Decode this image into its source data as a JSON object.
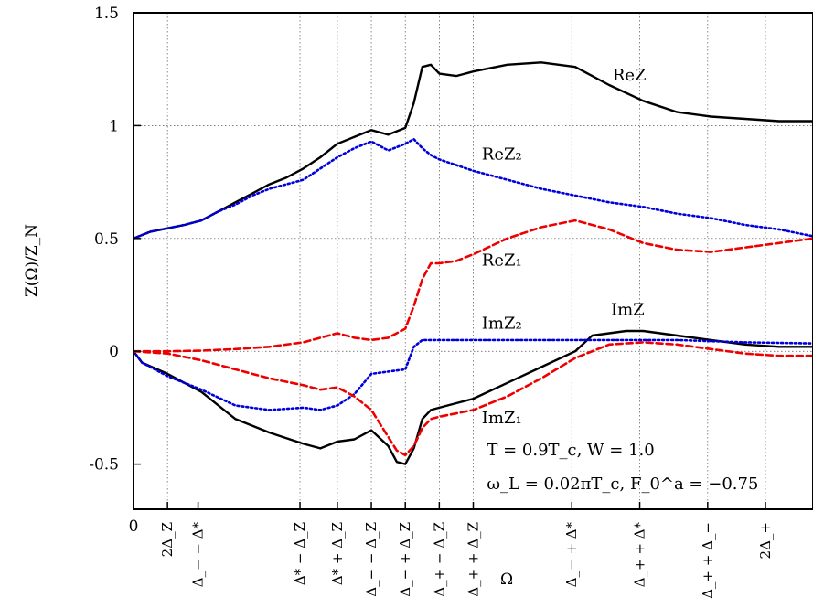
{
  "chart_data": {
    "type": "line",
    "xlabel": "Ω",
    "ylabel": "Z(Ω)/Z_N",
    "xlim": [
      0,
      4.0
    ],
    "ylim": [
      -0.7,
      1.5
    ],
    "grid": true,
    "x_ticks": [
      {
        "x": 0.0,
        "label": "0"
      },
      {
        "x": 0.2,
        "label": "2Δ_Z"
      },
      {
        "x": 0.38,
        "label": "Δ_− − Δ*"
      },
      {
        "x": 0.98,
        "label": "Δ* − Δ_Z"
      },
      {
        "x": 1.2,
        "label": "Δ* + Δ_Z"
      },
      {
        "x": 1.4,
        "label": "Δ_− − Δ_Z"
      },
      {
        "x": 1.6,
        "label": "Δ_− + Δ_Z"
      },
      {
        "x": 1.8,
        "label": "Δ_+ − Δ_Z"
      },
      {
        "x": 2.0,
        "label": "Δ_+ + Δ_Z"
      },
      {
        "x": 2.58,
        "label": "Δ_− + Δ*"
      },
      {
        "x": 2.98,
        "label": "Δ_+ + Δ*"
      },
      {
        "x": 3.38,
        "label": "Δ_+ + Δ_−"
      },
      {
        "x": 3.72,
        "label": "2Δ_+"
      }
    ],
    "y_ticks": [
      {
        "y": 1.5,
        "label": "1.5"
      },
      {
        "y": 1.0,
        "label": "1"
      },
      {
        "y": 0.5,
        "label": "0.5"
      },
      {
        "y": 0.0,
        "label": "0"
      },
      {
        "y": -0.5,
        "label": "-0.5"
      }
    ],
    "series": [
      {
        "name": "ReZ",
        "color": "#000000",
        "style": "solid",
        "x": [
          0,
          0.1,
          0.2,
          0.3,
          0.4,
          0.5,
          0.6,
          0.7,
          0.8,
          0.9,
          1.0,
          1.1,
          1.2,
          1.3,
          1.4,
          1.5,
          1.6,
          1.65,
          1.7,
          1.75,
          1.8,
          1.9,
          2.0,
          2.2,
          2.4,
          2.6,
          2.8,
          3.0,
          3.2,
          3.4,
          3.6,
          3.8,
          4.0
        ],
        "y": [
          0.5,
          0.53,
          0.545,
          0.56,
          0.58,
          0.62,
          0.66,
          0.7,
          0.74,
          0.77,
          0.81,
          0.86,
          0.92,
          0.95,
          0.98,
          0.96,
          0.99,
          1.1,
          1.26,
          1.27,
          1.23,
          1.22,
          1.24,
          1.27,
          1.28,
          1.26,
          1.18,
          1.11,
          1.06,
          1.04,
          1.03,
          1.02,
          1.02
        ]
      },
      {
        "name": "ReZ₂",
        "color": "#0000dd",
        "style": "dotted",
        "x": [
          0,
          0.1,
          0.2,
          0.3,
          0.4,
          0.5,
          0.6,
          0.7,
          0.8,
          0.9,
          1.0,
          1.1,
          1.2,
          1.3,
          1.4,
          1.5,
          1.6,
          1.65,
          1.7,
          1.75,
          1.8,
          2.0,
          2.2,
          2.4,
          2.6,
          2.8,
          3.0,
          3.2,
          3.4,
          3.6,
          3.8,
          4.0
        ],
        "y": [
          0.5,
          0.53,
          0.545,
          0.56,
          0.58,
          0.62,
          0.65,
          0.69,
          0.72,
          0.74,
          0.76,
          0.81,
          0.86,
          0.9,
          0.93,
          0.89,
          0.92,
          0.94,
          0.9,
          0.87,
          0.85,
          0.8,
          0.76,
          0.72,
          0.69,
          0.66,
          0.64,
          0.61,
          0.59,
          0.56,
          0.54,
          0.51
        ]
      },
      {
        "name": "ReZ₁",
        "color": "#ee0000",
        "style": "dashed",
        "x": [
          0,
          0.2,
          0.4,
          0.6,
          0.8,
          1.0,
          1.1,
          1.2,
          1.3,
          1.4,
          1.5,
          1.6,
          1.65,
          1.7,
          1.75,
          1.8,
          1.9,
          2.0,
          2.2,
          2.4,
          2.6,
          2.8,
          3.0,
          3.2,
          3.4,
          3.6,
          3.8,
          4.0
        ],
        "y": [
          0.0,
          0.0,
          0.003,
          0.01,
          0.02,
          0.04,
          0.06,
          0.08,
          0.06,
          0.05,
          0.06,
          0.1,
          0.2,
          0.32,
          0.39,
          0.39,
          0.4,
          0.43,
          0.5,
          0.55,
          0.58,
          0.54,
          0.48,
          0.45,
          0.44,
          0.46,
          0.48,
          0.5
        ]
      },
      {
        "name": "ImZ",
        "color": "#000000",
        "style": "solid",
        "x": [
          0,
          0.05,
          0.2,
          0.4,
          0.6,
          0.8,
          1.0,
          1.1,
          1.2,
          1.3,
          1.4,
          1.5,
          1.55,
          1.6,
          1.65,
          1.7,
          1.75,
          1.8,
          1.9,
          2.0,
          2.2,
          2.4,
          2.6,
          2.7,
          2.8,
          2.9,
          3.0,
          3.2,
          3.4,
          3.6,
          3.8,
          4.0
        ],
        "y": [
          0,
          -0.05,
          -0.1,
          -0.18,
          -0.3,
          -0.36,
          -0.41,
          -0.43,
          -0.4,
          -0.39,
          -0.35,
          -0.42,
          -0.49,
          -0.5,
          -0.43,
          -0.3,
          -0.26,
          -0.25,
          -0.23,
          -0.21,
          -0.14,
          -0.07,
          0.0,
          0.07,
          0.08,
          0.09,
          0.09,
          0.07,
          0.05,
          0.03,
          0.02,
          0.02
        ]
      },
      {
        "name": "ImZ₂",
        "color": "#0000dd",
        "style": "dotted",
        "x": [
          0,
          0.05,
          0.2,
          0.4,
          0.6,
          0.8,
          1.0,
          1.1,
          1.2,
          1.3,
          1.4,
          1.5,
          1.6,
          1.65,
          1.7,
          1.75,
          1.8,
          2.0,
          2.4,
          2.8,
          3.2,
          3.6,
          4.0
        ],
        "y": [
          0,
          -0.05,
          -0.11,
          -0.17,
          -0.24,
          -0.26,
          -0.25,
          -0.26,
          -0.24,
          -0.19,
          -0.1,
          -0.09,
          -0.08,
          0.02,
          0.05,
          0.05,
          0.05,
          0.05,
          0.05,
          0.05,
          0.05,
          0.04,
          0.035
        ]
      },
      {
        "name": "ImZ₁",
        "color": "#ee0000",
        "style": "dashed",
        "x": [
          0,
          0.2,
          0.4,
          0.6,
          0.8,
          1.0,
          1.1,
          1.2,
          1.3,
          1.4,
          1.5,
          1.55,
          1.6,
          1.65,
          1.7,
          1.75,
          1.8,
          2.0,
          2.2,
          2.4,
          2.6,
          2.8,
          3.0,
          3.2,
          3.4,
          3.6,
          3.8,
          4.0
        ],
        "y": [
          0,
          -0.01,
          -0.04,
          -0.08,
          -0.12,
          -0.15,
          -0.17,
          -0.16,
          -0.2,
          -0.26,
          -0.38,
          -0.44,
          -0.46,
          -0.42,
          -0.34,
          -0.3,
          -0.29,
          -0.26,
          -0.2,
          -0.12,
          -0.03,
          0.03,
          0.04,
          0.03,
          0.01,
          -0.01,
          -0.02,
          -0.02
        ]
      }
    ],
    "annotations": [
      {
        "text": "ReZ",
        "x": 2.82,
        "y": 1.2
      },
      {
        "text": "ReZ₂",
        "x": 2.05,
        "y": 0.85
      },
      {
        "text": "ReZ₁",
        "x": 2.05,
        "y": 0.38
      },
      {
        "text": "ImZ₂",
        "x": 2.05,
        "y": 0.1
      },
      {
        "text": "ImZ",
        "x": 2.81,
        "y": 0.16
      },
      {
        "text": "ImZ₁",
        "x": 2.05,
        "y": -0.32
      },
      {
        "text": "T = 0.9T_c, W = 1.0",
        "x": 2.08,
        "y": -0.46
      },
      {
        "text": "ω_L = 0.02πT_c, F_0^a = −0.75",
        "x": 2.08,
        "y": -0.61
      }
    ]
  }
}
